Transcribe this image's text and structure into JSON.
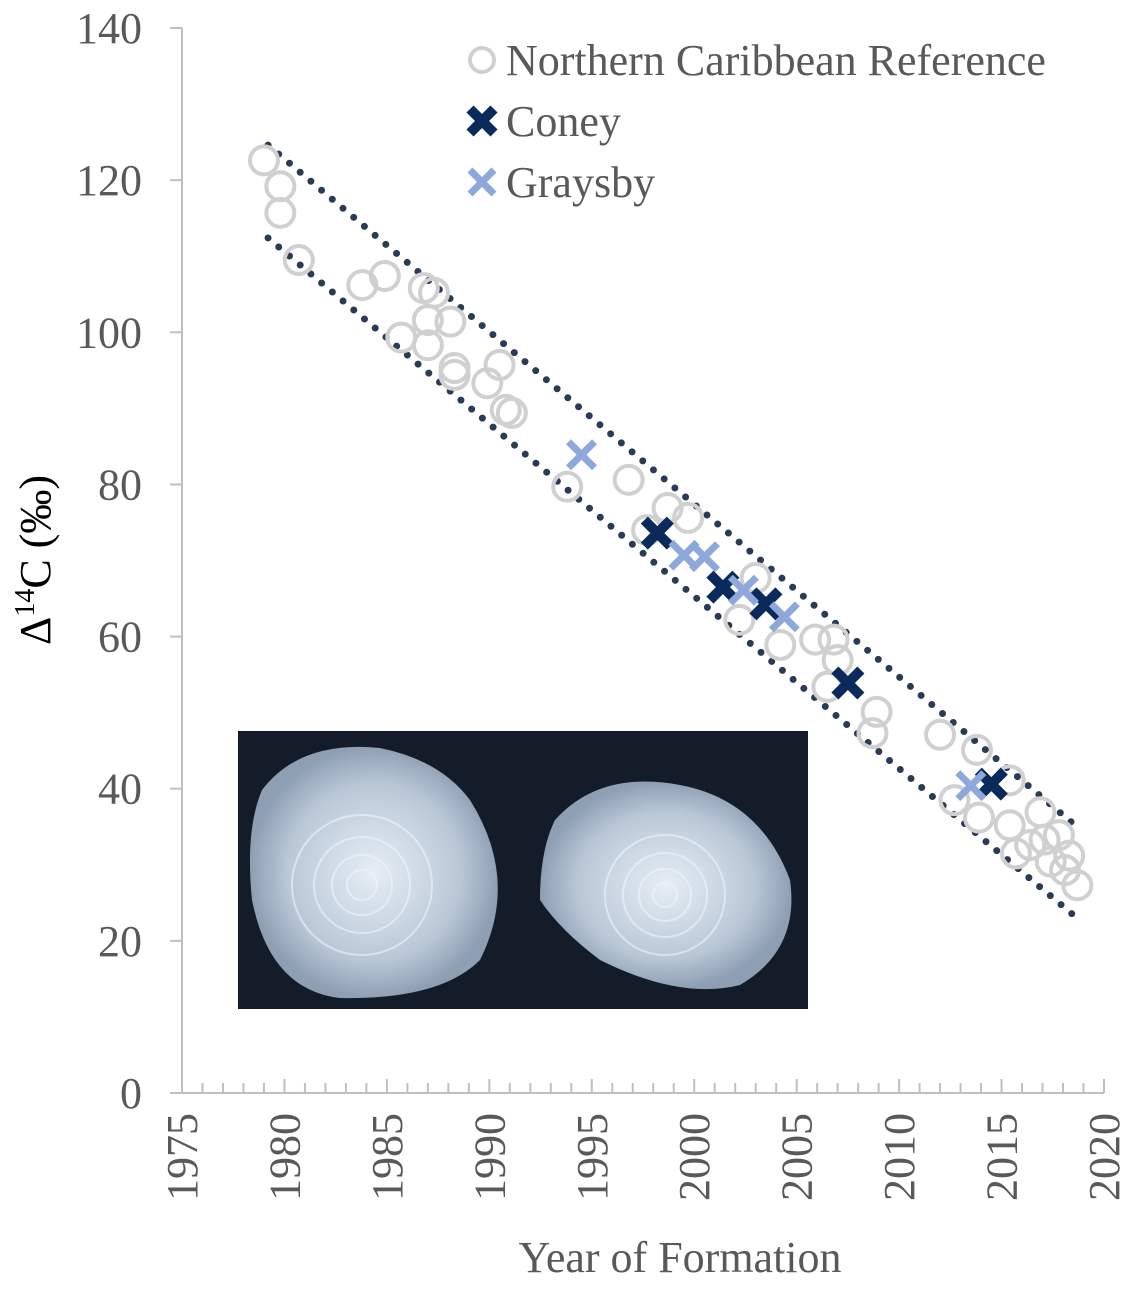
{
  "chart_data": {
    "type": "scatter",
    "x_label": "Year of Formation",
    "y_label": {
      "base": "Δ",
      "superscript": "14",
      "rest": "C (‰)"
    },
    "xlim": [
      1975,
      2020
    ],
    "xticks": [
      1975,
      1980,
      1985,
      1990,
      1995,
      2000,
      2005,
      2010,
      2015,
      2020
    ],
    "ylim": [
      0,
      140
    ],
    "yticks": [
      0,
      20,
      40,
      60,
      80,
      100,
      120,
      140
    ],
    "legend": "top-right",
    "series": [
      {
        "name": "Northern Caribbean Reference",
        "color": "#d0d0d0",
        "marker": "circle",
        "x": [
          1979.0,
          1979.8,
          1979.8,
          1980.7,
          1983.8,
          1984.9,
          1985.7,
          1986.8,
          1987.3,
          1987.0,
          1987.0,
          1988.1,
          1988.3,
          1988.3,
          1989.9,
          1990.5,
          1990.8,
          1991.1,
          1993.8,
          1996.8,
          1997.7,
          1998.7,
          1999.7,
          2003.0,
          2002.2,
          2004.2,
          2005.9,
          2006.8,
          2007.0,
          2006.5,
          2008.9,
          2008.7,
          2012.0,
          2013.8,
          2012.7,
          2013.9,
          2015.4,
          2015.4,
          2015.7,
          2016.9,
          2016.4,
          2017.1,
          2017.8,
          2017.4,
          2018.3,
          2018.1,
          2018.7
        ],
        "values": [
          122.6,
          119.2,
          115.7,
          109.5,
          106.2,
          107.4,
          99.3,
          105.8,
          105.2,
          101.6,
          98.3,
          101.4,
          95.3,
          94.4,
          93.3,
          95.7,
          89.8,
          89.4,
          79.7,
          80.6,
          74.0,
          76.9,
          75.6,
          67.7,
          62.2,
          58.9,
          59.6,
          59.6,
          56.9,
          53.4,
          50.1,
          47.3,
          47.1,
          45.1,
          38.5,
          36.2,
          41.1,
          35.2,
          31.5,
          36.9,
          32.6,
          33.3,
          33.9,
          30.4,
          31.2,
          29.3,
          27.3
        ]
      },
      {
        "name": "Coney",
        "color": "#0a2a5c",
        "marker": "x",
        "x": [
          1998.2,
          2001.4,
          2003.5,
          2007.5,
          2014.5
        ],
        "values": [
          73.6,
          66.5,
          64.3,
          53.9,
          40.6
        ]
      },
      {
        "name": "Graysby",
        "color": "#8fa8dc",
        "marker": "x",
        "x": [
          1994.5,
          1999.5,
          2000.5,
          2002.4,
          2004.4,
          2013.5
        ],
        "values": [
          83.9,
          70.7,
          70.5,
          66.1,
          62.6,
          40.4
        ]
      }
    ],
    "bands": [
      {
        "color": "#2b3a55",
        "x": [
          1979.2,
          2018.9
        ],
        "values": [
          124.6,
          34.5
        ]
      },
      {
        "color": "#2b3a55",
        "x": [
          1979.2,
          2018.9
        ],
        "values": [
          112.4,
          22.5
        ]
      }
    ]
  }
}
